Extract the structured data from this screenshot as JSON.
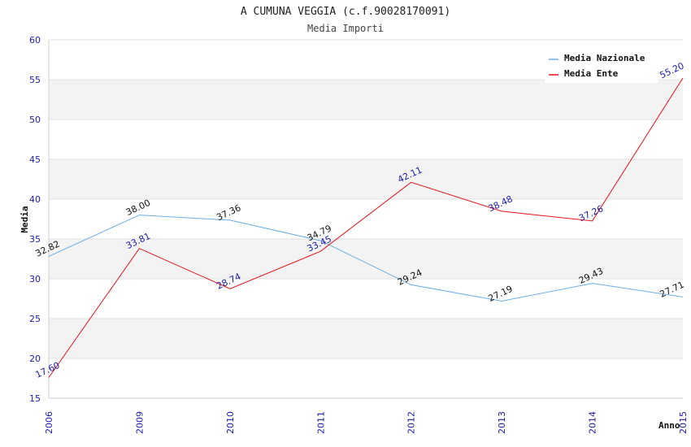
{
  "chart_data": {
    "type": "line",
    "title": "A CUMUNA VEGGIA (c.f.90028170091)",
    "subtitle": "Media Importi",
    "xlabel": "Anno",
    "ylabel": "Media",
    "categories": [
      "2006",
      "2009",
      "2010",
      "2011",
      "2012",
      "2013",
      "2014",
      "2015"
    ],
    "yticks": [
      "15",
      "20",
      "25",
      "30",
      "35",
      "40",
      "45",
      "50",
      "55",
      "60"
    ],
    "ylim": [
      15,
      60
    ],
    "grid": "horizontal alternating bands",
    "legend_position": "top-right",
    "series": [
      {
        "name": "Media Nazionale",
        "color": "#6aaee6",
        "values": [
          32.82,
          38.0,
          37.36,
          34.79,
          29.24,
          27.19,
          29.43,
          27.71
        ],
        "labels": [
          "32.82",
          "38.00",
          "37.36",
          "34.79",
          "29.24",
          "27.19",
          "29.43",
          "27.71"
        ]
      },
      {
        "name": "Media Ente",
        "color": "#e8101a",
        "values": [
          17.6,
          33.81,
          28.74,
          33.45,
          42.11,
          38.48,
          37.26,
          55.2
        ],
        "labels": [
          "17.60",
          "33.81",
          "28.74",
          "33.45",
          "42.11",
          "38.48",
          "37.26",
          "55.20"
        ]
      }
    ]
  }
}
